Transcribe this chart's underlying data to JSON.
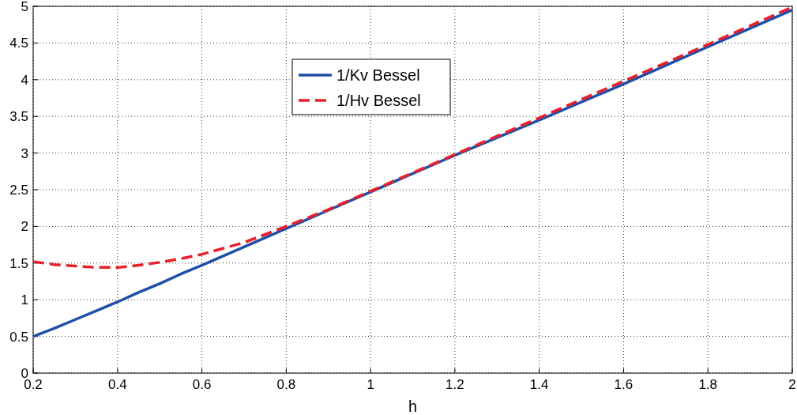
{
  "chart_data": {
    "type": "line",
    "xlabel": "h",
    "xlim": [
      0.2,
      2
    ],
    "xticks": [
      0.2,
      0.4,
      0.6,
      0.8,
      1,
      1.2,
      1.4,
      1.6,
      1.8,
      2
    ],
    "ylim": [
      0,
      5
    ],
    "yticks": [
      0,
      0.5,
      1,
      1.5,
      2,
      2.5,
      3,
      3.5,
      4,
      4.5,
      5
    ],
    "grid": true,
    "legend": "top",
    "x": [
      0.2,
      0.25,
      0.3,
      0.35,
      0.4,
      0.45,
      0.5,
      0.55,
      0.6,
      0.7,
      0.8,
      0.9,
      1.0,
      1.2,
      1.4,
      1.6,
      1.8,
      2.0
    ],
    "series": [
      {
        "name": "1/Kv Bessel",
        "color": "#1f4fa8",
        "line_style": "solid",
        "values": [
          0.5,
          0.61,
          0.73,
          0.85,
          0.97,
          1.1,
          1.22,
          1.35,
          1.47,
          1.72,
          1.97,
          2.22,
          2.47,
          2.97,
          3.45,
          3.94,
          4.45,
          4.95
        ]
      },
      {
        "name": "1/Hv Bessel",
        "color": "#e8202a",
        "line_style": "dashed",
        "values": [
          1.52,
          1.48,
          1.46,
          1.44,
          1.44,
          1.47,
          1.51,
          1.56,
          1.62,
          1.78,
          2.0,
          2.23,
          2.48,
          2.98,
          3.48,
          3.98,
          4.48,
          4.99
        ]
      }
    ]
  }
}
